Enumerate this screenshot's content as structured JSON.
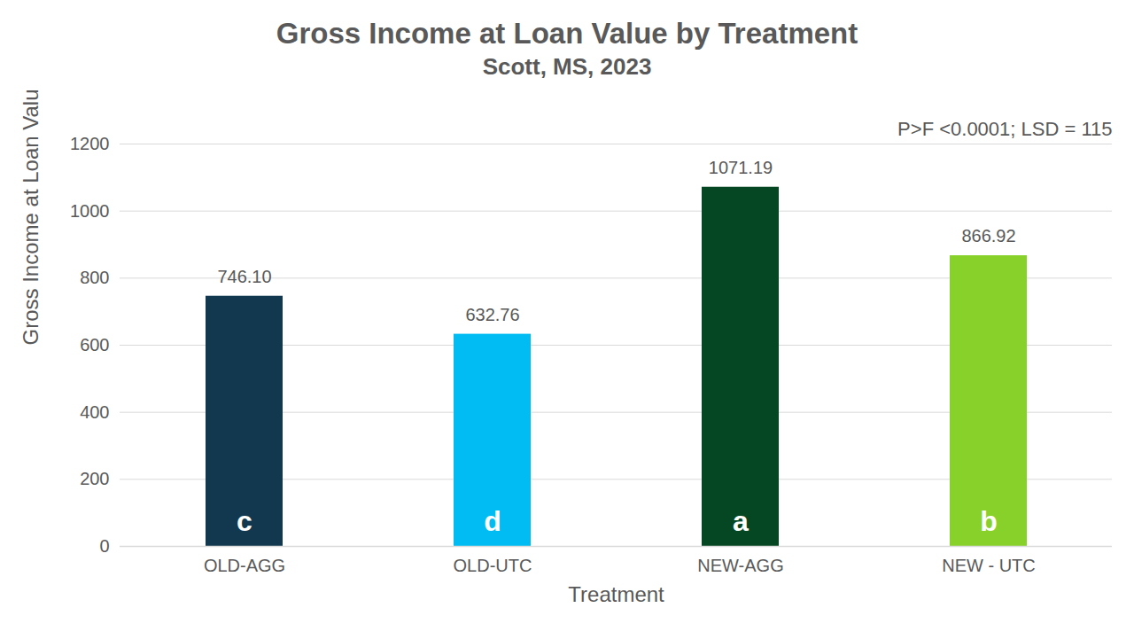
{
  "chart_data": {
    "type": "bar",
    "title": "Gross Income at Loan Value by Treatment",
    "subtitle": "Scott, MS, 2023",
    "annotation": "P>F <0.0001; LSD = 115",
    "xlabel": "Treatment",
    "ylabel": "Gross Income at Loan Value ($/acre)",
    "categories": [
      "OLD-AGG",
      "OLD-UTC",
      "NEW-AGG",
      "NEW - UTC"
    ],
    "values": [
      746.1,
      632.76,
      1071.19,
      866.92
    ],
    "value_labels": [
      "746.10",
      "632.76",
      "1071.19",
      "866.92"
    ],
    "letters": [
      "c",
      "d",
      "a",
      "b"
    ],
    "colors": [
      "#12384f",
      "#00bcf2",
      "#044722",
      "#88d12a"
    ],
    "ylim": [
      0,
      1200
    ],
    "yticks": [
      0,
      200,
      400,
      600,
      800,
      1000,
      1200
    ],
    "grid": true,
    "data_labels": true
  }
}
